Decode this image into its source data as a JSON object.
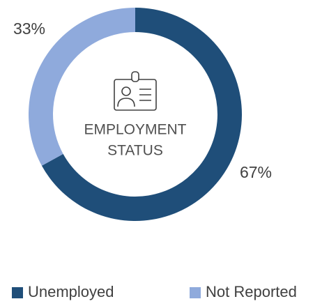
{
  "chart_data": {
    "type": "donut",
    "title_lines": [
      "EMPLOYMENT",
      "STATUS"
    ],
    "categories": [
      "Unemployed",
      "Not Reported"
    ],
    "values": [
      67,
      33
    ],
    "value_labels": [
      "67%",
      "33%"
    ],
    "colors": [
      "#1f4e79",
      "#8faadc"
    ]
  }
}
